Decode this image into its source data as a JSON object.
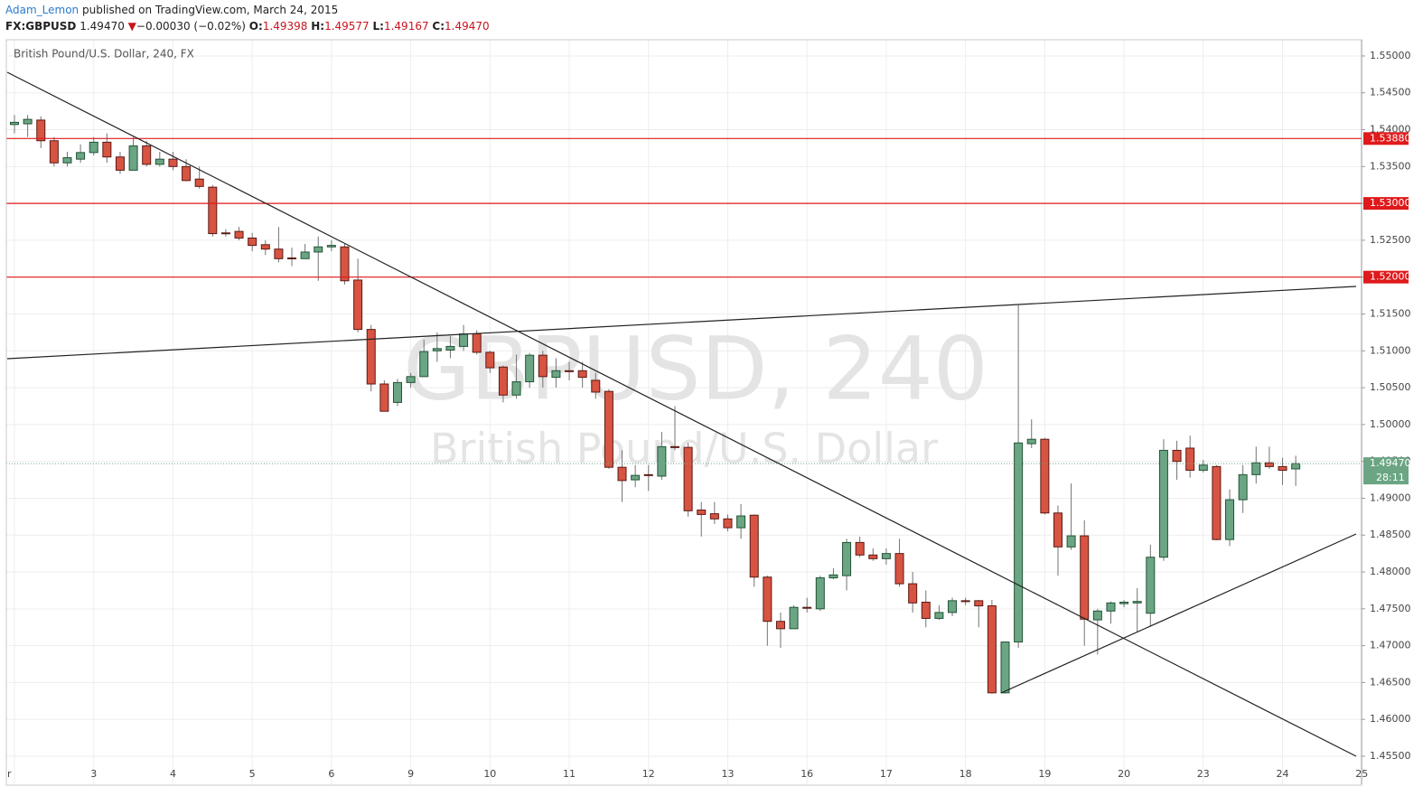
{
  "header": {
    "author": "Adam_Lemon",
    "published": "published on TradingView.com, March 24, 2015",
    "symbol": "FX:GBPUSD",
    "last": "1.49470",
    "arrow": "▼",
    "change": "−0.00030 (−0.02%)",
    "open_label": "O:",
    "open": "1.49398",
    "high_label": "H:",
    "high": "1.49577",
    "low_label": "L:",
    "low": "1.49167",
    "close_label": "C:",
    "close": "1.49470"
  },
  "chart_data": {
    "type": "candlestick",
    "title": "British Pound/U.S. Dollar, 240, FX",
    "watermark": "GBPUSD, 240",
    "watermark_subtitle": "British Pound/U.S. Dollar",
    "categories": [
      "r",
      null,
      null,
      null,
      null,
      null,
      "3",
      null,
      null,
      null,
      null,
      null,
      "4",
      null,
      null,
      null,
      null,
      null,
      "5",
      null,
      null,
      null,
      null,
      null,
      "6",
      null,
      null,
      null,
      null,
      null,
      "9",
      null,
      null,
      null,
      null,
      null,
      "10",
      null,
      null,
      null,
      null,
      null,
      "11",
      null,
      null,
      null,
      null,
      null,
      "12",
      null,
      null,
      null,
      null,
      null,
      "13",
      null,
      null,
      null,
      null,
      null,
      "16",
      null,
      null,
      null,
      null,
      null,
      "17",
      null,
      null,
      null,
      null,
      null,
      "18",
      null,
      null,
      null,
      null,
      null,
      "19",
      null,
      null,
      null,
      null,
      null,
      "20",
      null,
      null,
      null,
      null,
      null,
      "23",
      null,
      null,
      null,
      null,
      null,
      "24",
      null,
      null,
      null,
      null,
      null,
      "25"
    ],
    "open": [
      1.5407,
      1.5408,
      1.5413,
      1.5385,
      1.5355,
      1.536,
      1.5369,
      1.5383,
      1.5363,
      1.5345,
      1.5378,
      1.5353,
      1.536,
      1.535,
      1.5333,
      1.5322,
      1.526,
      1.5262,
      1.5253,
      1.5244,
      1.5238,
      1.5226,
      1.5225,
      1.5234,
      1.5241,
      1.5241,
      1.5196,
      1.5129,
      1.5055,
      1.503,
      1.5057,
      1.5065,
      1.51,
      1.5101,
      1.5106,
      1.5123,
      1.5098,
      1.5078,
      1.504,
      1.5058,
      1.5094,
      1.5064,
      1.5073,
      1.5073,
      1.506,
      1.5045,
      1.4942,
      1.4925,
      1.4932,
      1.493,
      1.497,
      1.4969,
      1.4884,
      1.4879,
      1.4872,
      1.486,
      1.4877,
      1.4793,
      1.4733,
      1.4723,
      1.4752,
      1.475,
      1.4792,
      1.4795,
      1.484,
      1.4823,
      1.4818,
      1.4825,
      1.4784,
      1.4759,
      1.4737,
      1.4745,
      1.4761,
      1.4761,
      1.4754,
      1.4636,
      1.4705,
      1.4974,
      1.498,
      1.488,
      1.4834,
      1.4849,
      1.4735,
      1.4747,
      1.4757,
      1.4758,
      1.4744,
      1.482,
      1.4965,
      1.4968,
      1.4938,
      1.4943,
      1.4844,
      1.4898,
      1.4932,
      1.4948,
      1.4943,
      1.49398,
      null,
      null,
      null,
      null,
      null
    ],
    "high": [
      1.542,
      1.542,
      1.5418,
      1.539,
      1.537,
      1.538,
      1.539,
      1.5395,
      1.537,
      1.539,
      1.5385,
      1.537,
      1.537,
      1.536,
      1.535,
      1.5325,
      1.5265,
      1.5268,
      1.526,
      1.525,
      1.5268,
      1.524,
      1.5245,
      1.5255,
      1.525,
      1.5245,
      1.5225,
      1.5135,
      1.506,
      1.5062,
      1.507,
      1.5115,
      1.5125,
      1.512,
      1.5135,
      1.5128,
      1.51,
      1.508,
      1.5095,
      1.5097,
      1.51,
      1.509,
      1.5085,
      1.5085,
      1.507,
      1.5048,
      1.4965,
      1.4945,
      1.4945,
      1.499,
      1.5025,
      1.4975,
      1.4895,
      1.4895,
      1.4878,
      1.4892,
      1.4878,
      1.4795,
      1.4745,
      1.4755,
      1.4765,
      1.4795,
      1.4805,
      1.4845,
      1.4848,
      1.4832,
      1.4832,
      1.4845,
      1.48,
      1.4775,
      1.4755,
      1.4765,
      1.4765,
      1.4762,
      1.4762,
      1.4705,
      1.5162,
      1.5007,
      1.4982,
      1.489,
      1.492,
      1.487,
      1.475,
      1.476,
      1.4762,
      1.4778,
      1.4837,
      1.498,
      1.4978,
      1.4985,
      1.4952,
      1.4945,
      1.4912,
      1.4945,
      1.497,
      1.497,
      1.4955,
      1.49577,
      null,
      null,
      null,
      null,
      null
    ],
    "low": [
      1.5395,
      1.539,
      1.5375,
      1.535,
      1.535,
      1.5355,
      1.5365,
      1.5355,
      1.534,
      1.5345,
      1.535,
      1.535,
      1.5345,
      1.533,
      1.532,
      1.5255,
      1.5255,
      1.525,
      1.5235,
      1.523,
      1.522,
      1.5215,
      1.5225,
      1.5195,
      1.5235,
      1.519,
      1.5125,
      1.5045,
      1.5018,
      1.5025,
      1.505,
      1.5065,
      1.5085,
      1.509,
      1.51,
      1.5095,
      1.507,
      1.503,
      1.5035,
      1.505,
      1.505,
      1.505,
      1.506,
      1.505,
      1.5035,
      1.494,
      1.4895,
      1.4915,
      1.491,
      1.4925,
      1.4965,
      1.4875,
      1.4848,
      1.4865,
      1.4855,
      1.4845,
      1.478,
      1.47,
      1.4697,
      1.4723,
      1.4745,
      1.4747,
      1.479,
      1.4775,
      1.482,
      1.4815,
      1.481,
      1.478,
      1.4745,
      1.4725,
      1.4735,
      1.474,
      1.4755,
      1.4725,
      1.4635,
      1.4635,
      1.4697,
      1.4968,
      1.4878,
      1.4795,
      1.483,
      1.47,
      1.4688,
      1.473,
      1.4752,
      1.4718,
      1.4727,
      1.4815,
      1.4925,
      1.4928,
      1.4935,
      1.4843,
      1.4835,
      1.488,
      1.492,
      1.494,
      1.4918,
      1.49167,
      null,
      null,
      null,
      null,
      null
    ],
    "close": [
      1.541,
      1.5414,
      1.5385,
      1.5355,
      1.5362,
      1.5369,
      1.5383,
      1.5363,
      1.5345,
      1.5378,
      1.5353,
      1.536,
      1.535,
      1.5331,
      1.5323,
      1.5259,
      1.5259,
      1.5253,
      1.5243,
      1.5238,
      1.5225,
      1.5225,
      1.5234,
      1.5241,
      1.5243,
      1.5195,
      1.5129,
      1.5055,
      1.5018,
      1.5057,
      1.5065,
      1.5099,
      1.5103,
      1.5106,
      1.5123,
      1.5098,
      1.5077,
      1.504,
      1.5058,
      1.5094,
      1.5065,
      1.5073,
      1.5072,
      1.5064,
      1.5044,
      1.4942,
      1.4924,
      1.4931,
      1.4931,
      1.497,
      1.4969,
      1.4883,
      1.4878,
      1.4872,
      1.486,
      1.4876,
      1.4793,
      1.4733,
      1.4723,
      1.4752,
      1.4751,
      1.4792,
      1.4796,
      1.484,
      1.4823,
      1.4818,
      1.4825,
      1.4784,
      1.4758,
      1.4737,
      1.4745,
      1.4761,
      1.476,
      1.4754,
      1.4636,
      1.4705,
      1.4975,
      1.498,
      1.488,
      1.4834,
      1.4849,
      1.4736,
      1.4747,
      1.4758,
      1.4759,
      1.476,
      1.482,
      1.4965,
      1.495,
      1.4938,
      1.4945,
      1.4844,
      1.4898,
      1.4932,
      1.4948,
      1.4943,
      1.4938,
      1.4947,
      null,
      null,
      null,
      null,
      null
    ],
    "up_color": "#6ba583",
    "down_color": "#d75442",
    "ylim": [
      1.4512,
      1.5522
    ],
    "yticks": [
      {
        "value": 1.455,
        "label": "1.45500"
      },
      {
        "value": 1.46,
        "label": "1.46000"
      },
      {
        "value": 1.465,
        "label": "1.46500"
      },
      {
        "value": 1.47,
        "label": "1.47000"
      },
      {
        "value": 1.475,
        "label": "1.47500"
      },
      {
        "value": 1.48,
        "label": "1.48000"
      },
      {
        "value": 1.485,
        "label": "1.48500"
      },
      {
        "value": 1.49,
        "label": "1.49000"
      },
      {
        "value": 1.495,
        "label": "1.49500"
      },
      {
        "value": 1.5,
        "label": "1.50000"
      },
      {
        "value": 1.505,
        "label": "1.50500"
      },
      {
        "value": 1.51,
        "label": "1.51000"
      },
      {
        "value": 1.515,
        "label": "1.51500"
      },
      {
        "value": 1.52,
        "label": "1.52000"
      },
      {
        "value": 1.525,
        "label": "1.52500"
      },
      {
        "value": 1.53,
        "label": "1.53000"
      },
      {
        "value": 1.535,
        "label": "1.53500"
      },
      {
        "value": 1.54,
        "label": "1.54000"
      },
      {
        "value": 1.545,
        "label": "1.54500"
      },
      {
        "value": 1.55,
        "label": "1.55000"
      }
    ],
    "horizontal_lines": [
      {
        "value": 1.5388,
        "label": "1.53880"
      },
      {
        "value": 1.53,
        "label": "1.53000"
      },
      {
        "value": 1.52,
        "label": "1.52000"
      }
    ],
    "line_color": "#e0191b",
    "last_price": {
      "value": 1.4947,
      "label": "1.49470"
    },
    "countdown": "28:11",
    "grid": true
  }
}
